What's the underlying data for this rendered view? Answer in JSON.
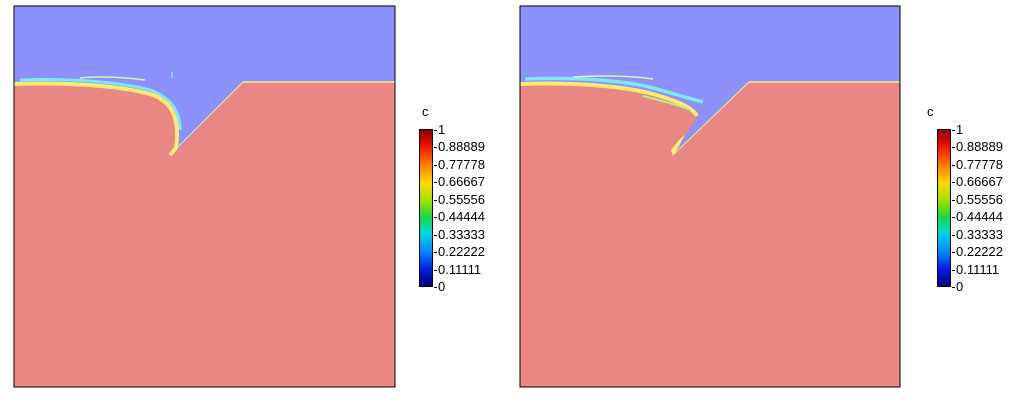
{
  "colors": {
    "upper_phase": "#8c91fc",
    "lower_phase": "#e88783",
    "interface_yellow": "#ffea70",
    "interface_cyan": "#7fe8ee",
    "interface_light": "#d8f0b8"
  },
  "panels": [
    {
      "colorbar": {
        "title": "c",
        "ticks": [
          "1",
          "0.88889",
          "0.77778",
          "0.66667",
          "0.55556",
          "0.44444",
          "0.33333",
          "0.22222",
          "0.11111",
          "0"
        ]
      }
    },
    {
      "colorbar": {
        "title": "c",
        "ticks": [
          "1",
          "0.88889",
          "0.77778",
          "0.66667",
          "0.55556",
          "0.44444",
          "0.33333",
          "0.22222",
          "0.11111",
          "0"
        ]
      }
    }
  ]
}
